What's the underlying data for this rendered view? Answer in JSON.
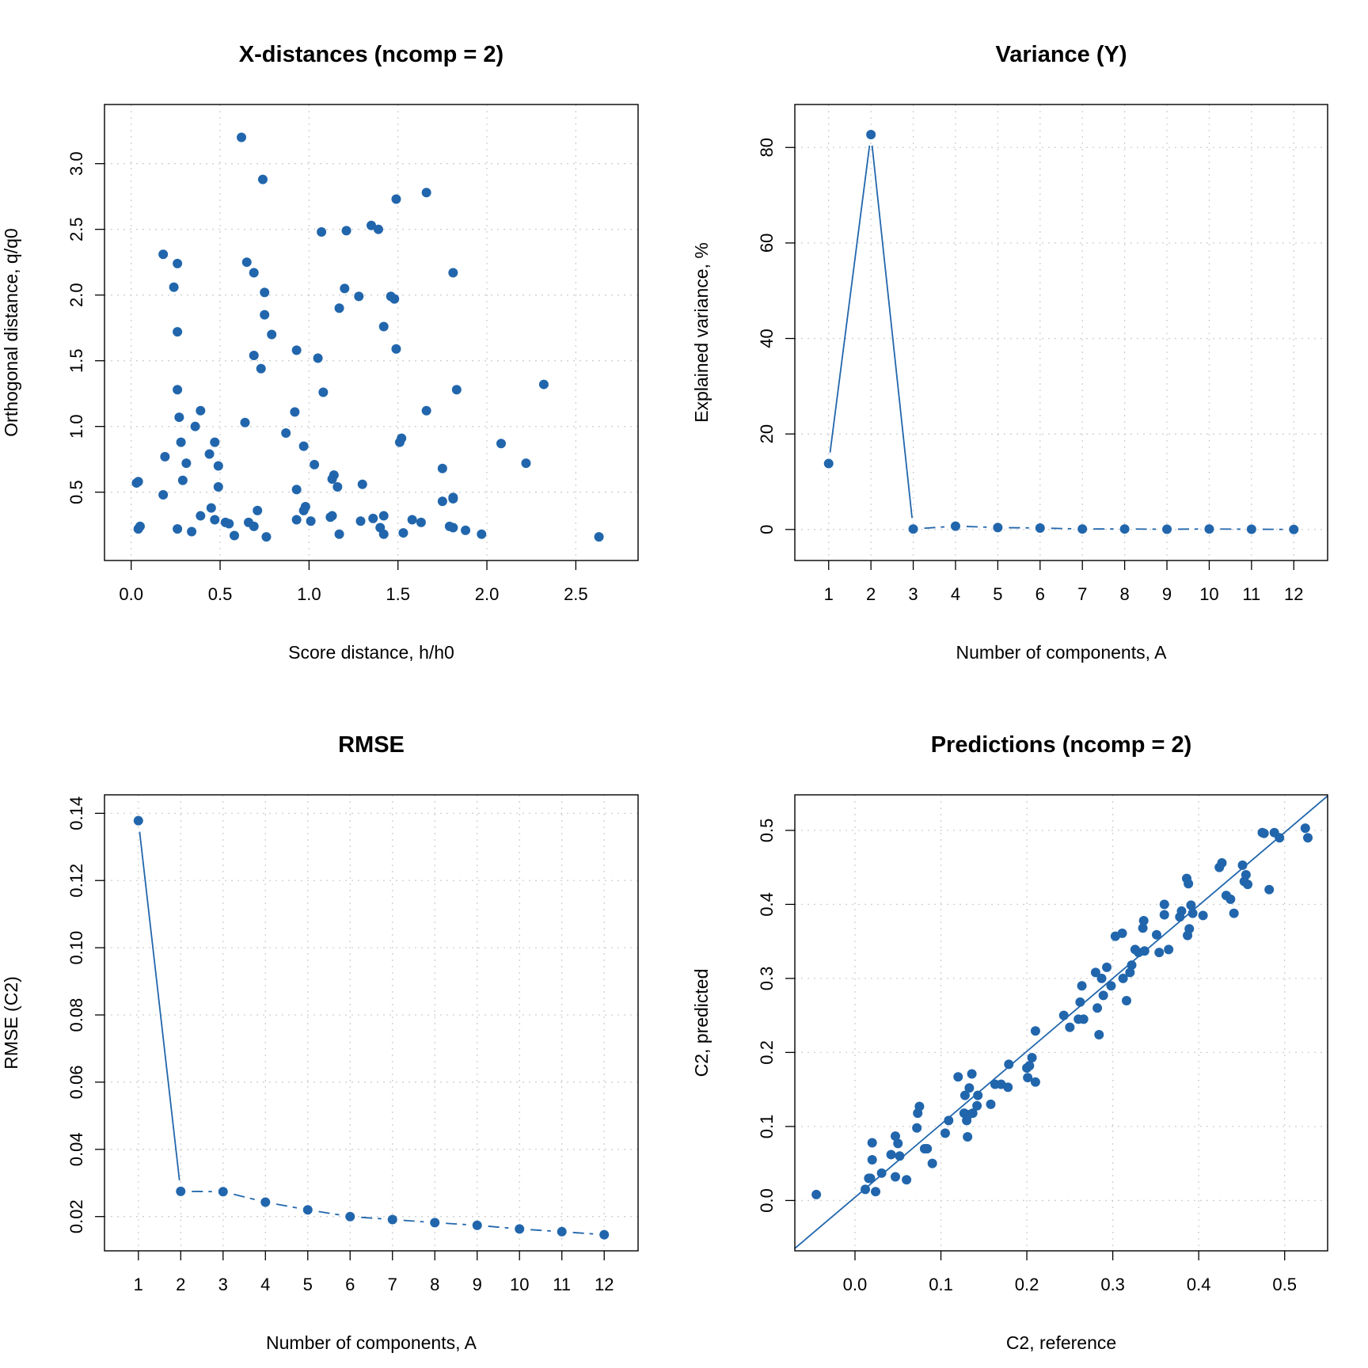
{
  "chart_data": [
    {
      "type": "scatter",
      "title": "X-distances (ncomp = 2)",
      "xlabel": "Score distance, h/h0",
      "ylabel": "Orthogonal distance, q/q0",
      "xlim": [
        -0.15,
        2.85
      ],
      "ylim": [
        -0.02,
        3.45
      ],
      "xticks": [
        0.0,
        0.5,
        1.0,
        1.5,
        2.0,
        2.5
      ],
      "xtick_labels": [
        "0.0",
        "0.5",
        "1.0",
        "1.5",
        "2.0",
        "2.5"
      ],
      "yticks": [
        0.5,
        1.0,
        1.5,
        2.0,
        2.5,
        3.0
      ],
      "ytick_labels": [
        "0.5",
        "1.0",
        "1.5",
        "2.0",
        "2.5",
        "3.0"
      ],
      "grid": true,
      "color": "#2166ac",
      "points": [
        [
          0.62,
          3.2
        ],
        [
          0.74,
          2.88
        ],
        [
          1.49,
          2.73
        ],
        [
          1.66,
          2.78
        ],
        [
          1.35,
          2.53
        ],
        [
          1.39,
          2.5
        ],
        [
          1.07,
          2.48
        ],
        [
          1.21,
          2.49
        ],
        [
          0.18,
          2.31
        ],
        [
          0.26,
          2.24
        ],
        [
          0.65,
          2.25
        ],
        [
          0.69,
          2.17
        ],
        [
          1.81,
          2.17
        ],
        [
          0.24,
          2.06
        ],
        [
          0.75,
          2.02
        ],
        [
          1.2,
          2.05
        ],
        [
          1.28,
          1.99
        ],
        [
          1.46,
          1.99
        ],
        [
          1.48,
          1.97
        ],
        [
          1.17,
          1.9
        ],
        [
          0.75,
          1.85
        ],
        [
          0.26,
          1.72
        ],
        [
          0.79,
          1.7
        ],
        [
          1.42,
          1.76
        ],
        [
          0.69,
          1.54
        ],
        [
          0.93,
          1.58
        ],
        [
          1.05,
          1.52
        ],
        [
          1.49,
          1.59
        ],
        [
          0.73,
          1.44
        ],
        [
          2.32,
          1.32
        ],
        [
          0.26,
          1.28
        ],
        [
          1.08,
          1.26
        ],
        [
          1.83,
          1.28
        ],
        [
          0.39,
          1.12
        ],
        [
          0.27,
          1.07
        ],
        [
          0.92,
          1.11
        ],
        [
          1.66,
          1.12
        ],
        [
          0.36,
          1.0
        ],
        [
          0.64,
          1.03
        ],
        [
          0.87,
          0.95
        ],
        [
          0.28,
          0.88
        ],
        [
          0.47,
          0.88
        ],
        [
          0.97,
          0.85
        ],
        [
          1.52,
          0.91
        ],
        [
          1.51,
          0.88
        ],
        [
          2.08,
          0.87
        ],
        [
          0.19,
          0.77
        ],
        [
          0.44,
          0.79
        ],
        [
          0.31,
          0.72
        ],
        [
          0.49,
          0.7
        ],
        [
          1.03,
          0.71
        ],
        [
          2.22,
          0.72
        ],
        [
          1.75,
          0.68
        ],
        [
          0.29,
          0.59
        ],
        [
          1.14,
          0.63
        ],
        [
          1.13,
          0.6
        ],
        [
          0.03,
          0.57
        ],
        [
          0.04,
          0.58
        ],
        [
          0.49,
          0.54
        ],
        [
          0.93,
          0.52
        ],
        [
          1.16,
          0.54
        ],
        [
          1.3,
          0.56
        ],
        [
          0.18,
          0.48
        ],
        [
          1.81,
          0.46
        ],
        [
          1.81,
          0.45
        ],
        [
          0.45,
          0.38
        ],
        [
          0.71,
          0.36
        ],
        [
          0.97,
          0.36
        ],
        [
          0.98,
          0.39
        ],
        [
          1.75,
          0.43
        ],
        [
          0.39,
          0.32
        ],
        [
          0.47,
          0.29
        ],
        [
          0.53,
          0.27
        ],
        [
          0.55,
          0.26
        ],
        [
          0.66,
          0.27
        ],
        [
          0.93,
          0.29
        ],
        [
          1.01,
          0.28
        ],
        [
          1.12,
          0.31
        ],
        [
          1.13,
          0.32
        ],
        [
          1.29,
          0.28
        ],
        [
          1.36,
          0.3
        ],
        [
          1.42,
          0.32
        ],
        [
          1.58,
          0.29
        ],
        [
          1.63,
          0.27
        ],
        [
          0.04,
          0.22
        ],
        [
          0.05,
          0.24
        ],
        [
          0.26,
          0.22
        ],
        [
          0.34,
          0.2
        ],
        [
          0.58,
          0.17
        ],
        [
          0.69,
          0.24
        ],
        [
          0.76,
          0.16
        ],
        [
          1.17,
          0.18
        ],
        [
          1.4,
          0.23
        ],
        [
          1.42,
          0.18
        ],
        [
          1.53,
          0.19
        ],
        [
          1.79,
          0.24
        ],
        [
          1.81,
          0.23
        ],
        [
          1.88,
          0.21
        ],
        [
          1.97,
          0.18
        ],
        [
          2.63,
          0.16
        ]
      ]
    },
    {
      "type": "line",
      "title": "Variance (Y)",
      "xlabel": "Number of components, A",
      "ylabel": "Explained variance, %",
      "xlim": [
        0.2,
        12.8
      ],
      "ylim": [
        -6.5,
        89
      ],
      "xticks": [
        1,
        2,
        3,
        4,
        5,
        6,
        7,
        8,
        9,
        10,
        11,
        12
      ],
      "xtick_labels": [
        "1",
        "2",
        "3",
        "4",
        "5",
        "6",
        "7",
        "8",
        "9",
        "10",
        "11",
        "12"
      ],
      "yticks": [
        0,
        20,
        40,
        60,
        80
      ],
      "ytick_labels": [
        "0",
        "20",
        "40",
        "60",
        "80"
      ],
      "grid": true,
      "color": "#2166ac",
      "x": [
        1,
        2,
        3,
        4,
        5,
        6,
        7,
        8,
        9,
        10,
        11,
        12
      ],
      "y": [
        13.8,
        82.7,
        0.1,
        0.7,
        0.4,
        0.3,
        0.1,
        0.1,
        0.05,
        0.1,
        0.05,
        0.0
      ],
      "solid_until_index": 2
    },
    {
      "type": "line",
      "title": "RMSE",
      "xlabel": "Number of components, A",
      "ylabel": "RMSE (C2)",
      "xlim": [
        0.2,
        12.8
      ],
      "ylim": [
        0.0098,
        0.1455
      ],
      "xticks": [
        1,
        2,
        3,
        4,
        5,
        6,
        7,
        8,
        9,
        10,
        11,
        12
      ],
      "xtick_labels": [
        "1",
        "2",
        "3",
        "4",
        "5",
        "6",
        "7",
        "8",
        "9",
        "10",
        "11",
        "12"
      ],
      "yticks": [
        0.02,
        0.04,
        0.06,
        0.08,
        0.1,
        0.12,
        0.14
      ],
      "ytick_labels": [
        "0.02",
        "0.04",
        "0.06",
        "0.08",
        "0.10",
        "0.12",
        "0.14"
      ],
      "grid": true,
      "color": "#2166ac",
      "x": [
        1,
        2,
        3,
        4,
        5,
        6,
        7,
        8,
        9,
        10,
        11,
        12
      ],
      "y": [
        0.1378,
        0.0275,
        0.0274,
        0.0243,
        0.022,
        0.02,
        0.0191,
        0.0182,
        0.0174,
        0.0163,
        0.0155,
        0.0146
      ],
      "solid_until_index": 1
    },
    {
      "type": "scatter",
      "title": "Predictions (ncomp = 2)",
      "xlabel": "C2, reference",
      "ylabel": "C2, predicted",
      "xlim": [
        -0.07,
        0.55
      ],
      "ylim": [
        -0.068,
        0.548
      ],
      "xticks": [
        0.0,
        0.1,
        0.2,
        0.3,
        0.4,
        0.5
      ],
      "xtick_labels": [
        "0.0",
        "0.1",
        "0.2",
        "0.3",
        "0.4",
        "0.5"
      ],
      "yticks": [
        0.0,
        0.1,
        0.2,
        0.3,
        0.4,
        0.5
      ],
      "ytick_labels": [
        "0.0",
        "0.1",
        "0.2",
        "0.3",
        "0.4",
        "0.5"
      ],
      "grid": true,
      "color": "#2166ac",
      "fit_line": {
        "slope": 0.986,
        "intercept": 0.0043
      },
      "points": [
        [
          -0.045,
          0.008
        ],
        [
          0.012,
          0.015
        ],
        [
          0.016,
          0.03
        ],
        [
          0.018,
          0.03
        ],
        [
          0.02,
          0.078
        ],
        [
          0.02,
          0.055
        ],
        [
          0.024,
          0.012
        ],
        [
          0.031,
          0.037
        ],
        [
          0.042,
          0.062
        ],
        [
          0.047,
          0.032
        ],
        [
          0.047,
          0.087
        ],
        [
          0.05,
          0.077
        ],
        [
          0.052,
          0.06
        ],
        [
          0.06,
          0.028
        ],
        [
          0.072,
          0.098
        ],
        [
          0.073,
          0.118
        ],
        [
          0.075,
          0.127
        ],
        [
          0.081,
          0.07
        ],
        [
          0.084,
          0.07
        ],
        [
          0.09,
          0.05
        ],
        [
          0.105,
          0.091
        ],
        [
          0.109,
          0.108
        ],
        [
          0.12,
          0.167
        ],
        [
          0.127,
          0.118
        ],
        [
          0.128,
          0.142
        ],
        [
          0.13,
          0.108
        ],
        [
          0.131,
          0.086
        ],
        [
          0.132,
          0.116
        ],
        [
          0.133,
          0.152
        ],
        [
          0.136,
          0.171
        ],
        [
          0.137,
          0.118
        ],
        [
          0.142,
          0.128
        ],
        [
          0.143,
          0.142
        ],
        [
          0.158,
          0.13
        ],
        [
          0.163,
          0.157
        ],
        [
          0.17,
          0.157
        ],
        [
          0.178,
          0.153
        ],
        [
          0.179,
          0.184
        ],
        [
          0.2,
          0.179
        ],
        [
          0.201,
          0.166
        ],
        [
          0.203,
          0.182
        ],
        [
          0.206,
          0.193
        ],
        [
          0.21,
          0.229
        ],
        [
          0.21,
          0.16
        ],
        [
          0.243,
          0.25
        ],
        [
          0.25,
          0.234
        ],
        [
          0.26,
          0.245
        ],
        [
          0.262,
          0.268
        ],
        [
          0.264,
          0.29
        ],
        [
          0.266,
          0.245
        ],
        [
          0.28,
          0.308
        ],
        [
          0.282,
          0.26
        ],
        [
          0.284,
          0.224
        ],
        [
          0.287,
          0.3
        ],
        [
          0.289,
          0.277
        ],
        [
          0.293,
          0.315
        ],
        [
          0.298,
          0.29
        ],
        [
          0.303,
          0.357
        ],
        [
          0.311,
          0.361
        ],
        [
          0.312,
          0.3
        ],
        [
          0.316,
          0.27
        ],
        [
          0.32,
          0.308
        ],
        [
          0.322,
          0.318
        ],
        [
          0.326,
          0.339
        ],
        [
          0.33,
          0.335
        ],
        [
          0.335,
          0.368
        ],
        [
          0.336,
          0.378
        ],
        [
          0.337,
          0.337
        ],
        [
          0.351,
          0.359
        ],
        [
          0.354,
          0.335
        ],
        [
          0.36,
          0.4
        ],
        [
          0.36,
          0.386
        ],
        [
          0.365,
          0.339
        ],
        [
          0.378,
          0.383
        ],
        [
          0.38,
          0.391
        ],
        [
          0.386,
          0.435
        ],
        [
          0.387,
          0.358
        ],
        [
          0.388,
          0.428
        ],
        [
          0.389,
          0.367
        ],
        [
          0.391,
          0.399
        ],
        [
          0.393,
          0.388
        ],
        [
          0.405,
          0.385
        ],
        [
          0.424,
          0.45
        ],
        [
          0.427,
          0.456
        ],
        [
          0.432,
          0.412
        ],
        [
          0.437,
          0.407
        ],
        [
          0.441,
          0.388
        ],
        [
          0.451,
          0.453
        ],
        [
          0.453,
          0.431
        ],
        [
          0.455,
          0.44
        ],
        [
          0.457,
          0.427
        ],
        [
          0.474,
          0.497
        ],
        [
          0.476,
          0.496
        ],
        [
          0.482,
          0.42
        ],
        [
          0.488,
          0.497
        ],
        [
          0.494,
          0.49
        ],
        [
          0.524,
          0.503
        ],
        [
          0.527,
          0.49
        ]
      ]
    }
  ]
}
